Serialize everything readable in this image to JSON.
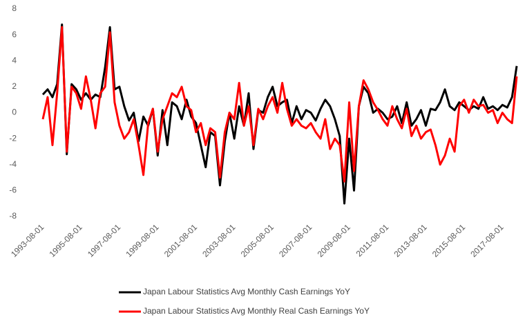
{
  "chart_data": {
    "type": "line",
    "x": [
      "1993-08-01",
      "1993-11-01",
      "1994-02-01",
      "1994-05-01",
      "1994-08-01",
      "1994-11-01",
      "1995-02-01",
      "1995-05-01",
      "1995-08-01",
      "1995-11-01",
      "1996-02-01",
      "1996-05-01",
      "1996-08-01",
      "1996-11-01",
      "1997-02-01",
      "1997-05-01",
      "1997-08-01",
      "1997-11-01",
      "1998-02-01",
      "1998-05-01",
      "1998-08-01",
      "1998-11-01",
      "1999-02-01",
      "1999-05-01",
      "1999-08-01",
      "1999-11-01",
      "2000-02-01",
      "2000-05-01",
      "2000-08-01",
      "2000-11-01",
      "2001-02-01",
      "2001-05-01",
      "2001-08-01",
      "2001-11-01",
      "2002-02-01",
      "2002-05-01",
      "2002-08-01",
      "2002-11-01",
      "2003-02-01",
      "2003-05-01",
      "2003-08-01",
      "2003-11-01",
      "2004-02-01",
      "2004-05-01",
      "2004-08-01",
      "2004-11-01",
      "2005-02-01",
      "2005-05-01",
      "2005-08-01",
      "2005-11-01",
      "2006-02-01",
      "2006-05-01",
      "2006-08-01",
      "2006-11-01",
      "2007-02-01",
      "2007-05-01",
      "2007-08-01",
      "2007-11-01",
      "2008-02-01",
      "2008-05-01",
      "2008-08-01",
      "2008-11-01",
      "2009-02-01",
      "2009-05-01",
      "2009-08-01",
      "2009-11-01",
      "2010-02-01",
      "2010-05-01",
      "2010-08-01",
      "2010-11-01",
      "2011-02-01",
      "2011-05-01",
      "2011-08-01",
      "2011-11-01",
      "2012-02-01",
      "2012-05-01",
      "2012-08-01",
      "2012-11-01",
      "2013-02-01",
      "2013-05-01",
      "2013-08-01",
      "2013-11-01",
      "2014-02-01",
      "2014-05-01",
      "2014-08-01",
      "2014-11-01",
      "2015-02-01",
      "2015-05-01",
      "2015-08-01",
      "2015-11-01",
      "2016-02-01",
      "2016-05-01",
      "2016-08-01",
      "2016-11-01",
      "2017-02-01",
      "2017-05-01",
      "2017-08-01",
      "2017-11-01",
      "2018-02-01",
      "2018-05-01"
    ],
    "series": [
      {
        "name": "Japan Labour Statistics Avg Monthly Cash Earnings YoY",
        "color": "#000000",
        "values": [
          1.4,
          1.8,
          1.2,
          2.2,
          6.8,
          -3.2,
          2.2,
          1.8,
          1.0,
          1.5,
          1.0,
          1.4,
          1.2,
          3.5,
          6.6,
          1.8,
          2.0,
          0.5,
          -0.6,
          0.0,
          -2.2,
          -0.3,
          -1.0,
          0.3,
          -3.3,
          0.2,
          -2.5,
          0.8,
          0.5,
          -0.5,
          1.0,
          -0.3,
          -0.8,
          -2.5,
          -4.2,
          -1.5,
          -1.8,
          -5.6,
          -2.2,
          0.0,
          -2.0,
          0.5,
          -1.0,
          1.5,
          -2.8,
          0.2,
          0.0,
          1.2,
          2.0,
          0.5,
          0.8,
          1.0,
          -0.8,
          0.5,
          -0.5,
          0.2,
          0.0,
          -0.6,
          0.3,
          1.0,
          0.5,
          -0.5,
          -1.8,
          -7.0,
          -2.0,
          -6.0,
          0.5,
          2.0,
          1.5,
          0.0,
          0.3,
          0.0,
          -0.5,
          -0.3,
          0.5,
          -0.8,
          0.8,
          -1.0,
          -0.5,
          0.2,
          -1.0,
          0.3,
          0.2,
          0.8,
          1.8,
          0.5,
          0.2,
          0.8,
          0.5,
          0.2,
          0.5,
          0.3,
          1.2,
          0.3,
          0.5,
          0.2,
          0.6,
          0.4,
          1.2,
          3.6
        ]
      },
      {
        "name": "Japan Labour Statistics Avg Monthly Real Cash Earnings YoY",
        "color": "#ff0000",
        "values": [
          -0.5,
          1.2,
          -2.5,
          1.5,
          6.6,
          -3.0,
          2.0,
          1.5,
          0.3,
          2.8,
          1.0,
          -1.2,
          1.5,
          2.0,
          6.2,
          0.8,
          -1.0,
          -2.0,
          -1.5,
          -0.5,
          -2.5,
          -4.8,
          -0.8,
          0.3,
          -3.0,
          -0.5,
          0.5,
          1.5,
          1.2,
          2.0,
          0.5,
          0.2,
          -1.5,
          -0.8,
          -2.5,
          -1.2,
          -1.5,
          -5.0,
          -1.5,
          0.0,
          -0.5,
          2.3,
          -1.0,
          0.5,
          -2.5,
          0.3,
          -0.5,
          0.5,
          1.2,
          0.0,
          2.3,
          0.3,
          -1.0,
          -0.5,
          -1.0,
          -1.2,
          -0.8,
          -1.5,
          -2.0,
          -0.5,
          -2.8,
          -2.0,
          -2.5,
          -5.3,
          0.8,
          -4.5,
          0.5,
          2.5,
          1.8,
          0.8,
          0.2,
          -0.5,
          -1.0,
          0.5,
          -0.5,
          -1.2,
          0.3,
          -1.8,
          -1.0,
          -2.0,
          -1.5,
          -1.3,
          -2.5,
          -4.0,
          -3.3,
          -2.0,
          -3.0,
          0.5,
          1.0,
          0.0,
          1.0,
          0.5,
          0.6,
          0.0,
          0.2,
          -0.8,
          0.0,
          -0.5,
          -0.8,
          2.8
        ]
      }
    ],
    "xlim": [
      "1993-08-01",
      "2018-05-01"
    ],
    "xticks": [
      "1993-08-01",
      "1995-08-01",
      "1997-08-01",
      "1999-08-01",
      "2001-08-01",
      "2003-08-01",
      "2005-08-01",
      "2007-08-01",
      "2009-08-01",
      "2011-08-01",
      "2013-08-01",
      "2015-08-01",
      "2017-08-01"
    ],
    "ylim": [
      -8,
      8
    ],
    "yticks": [
      -8,
      -6,
      -4,
      -2,
      0,
      2,
      4,
      6,
      8
    ],
    "grid": false,
    "legend": "bottom"
  }
}
